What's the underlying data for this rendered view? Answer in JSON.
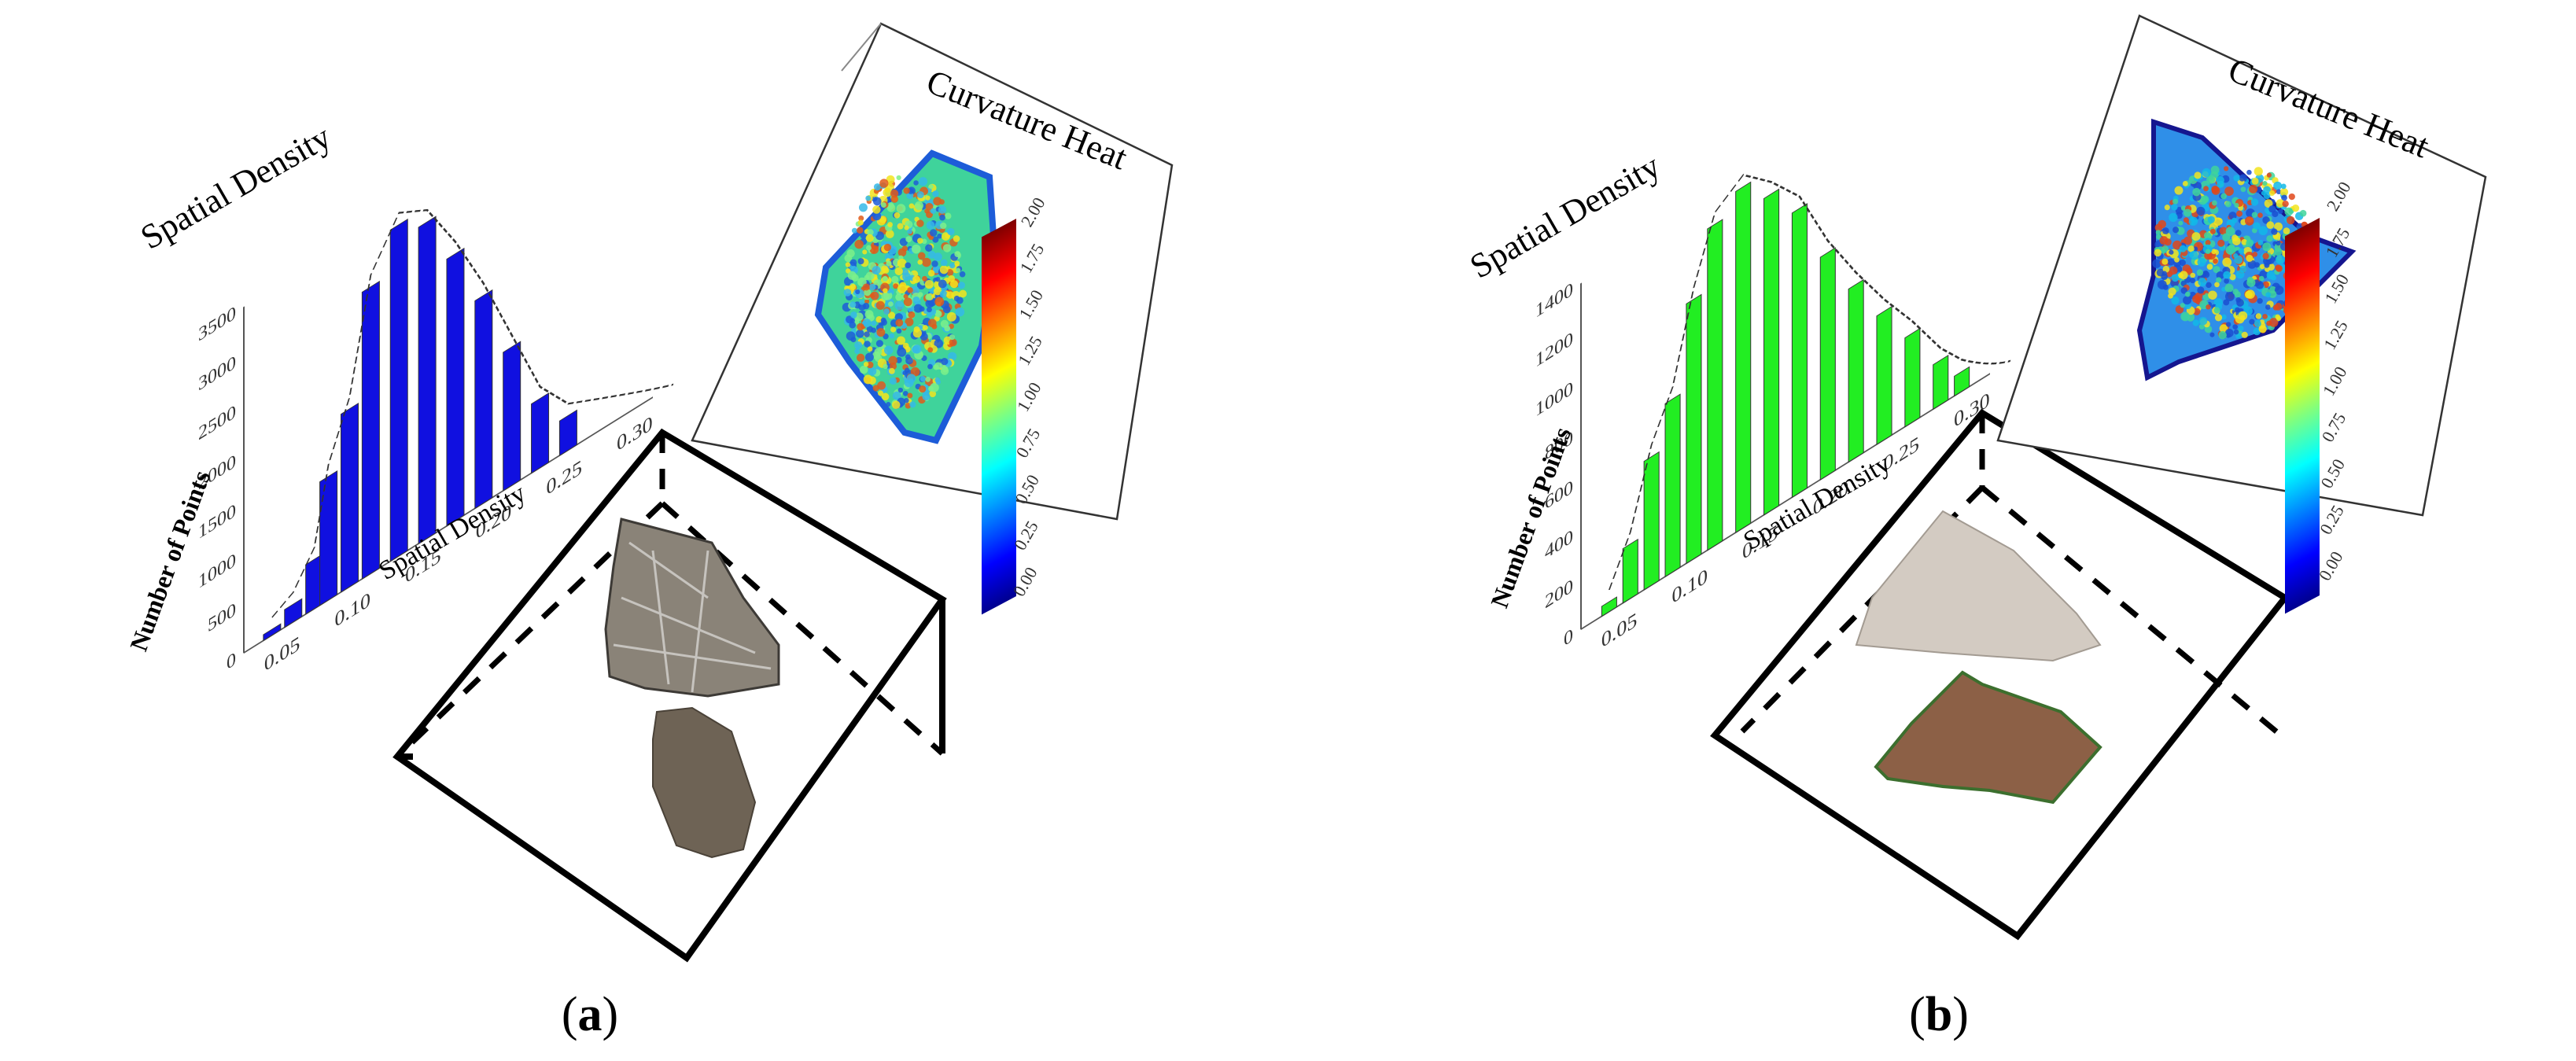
{
  "panels": [
    {
      "id": "a",
      "caption_open": "(",
      "caption_letter": "a",
      "caption_close": ")",
      "bar_color": "#1010e0",
      "moth_color": "#6e6355",
      "mesh_color": "#8a8378",
      "heat_base": "#3fd39b",
      "chart_data": {
        "type": "bar",
        "title": "Spatial Density",
        "xlabel": "Spatial Density",
        "ylabel": "Number of Points",
        "x_ticks": [
          "0.05",
          "0.10",
          "0.15",
          "0.20",
          "0.25",
          "0.30"
        ],
        "y_ticks": [
          "0",
          "500",
          "1000",
          "1500",
          "2000",
          "2500",
          "3000",
          "3500"
        ],
        "ylim": [
          0,
          3500
        ],
        "xlim": [
          0.03,
          0.32
        ],
        "x": [
          0.05,
          0.065,
          0.08,
          0.09,
          0.105,
          0.12,
          0.14,
          0.16,
          0.18,
          0.2,
          0.22,
          0.24,
          0.26
        ],
        "values": [
          60,
          180,
          500,
          1250,
          1800,
          2900,
          3350,
          3200,
          2700,
          2100,
          1400,
          700,
          350
        ]
      },
      "heatmap": {
        "title": "Curvature Heat",
        "colorbar_ticks": [
          "0.00",
          "0.25",
          "0.50",
          "0.75",
          "1.00",
          "1.25",
          "1.50",
          "1.75",
          "2.00"
        ],
        "range": [
          0,
          2
        ]
      }
    },
    {
      "id": "b",
      "caption_open": "(",
      "caption_letter": "b",
      "caption_close": ")",
      "bar_color": "#22ee22",
      "moth_color": "#8c6046",
      "mesh_color": "#d3cbc2",
      "heat_base": "#2f8fe8",
      "chart_data": {
        "type": "bar",
        "title": "Spatial Density",
        "xlabel": "Spatial Density",
        "ylabel": "Number of Points",
        "x_ticks": [
          "0.05",
          "0.10",
          "0.15",
          "0.20",
          "0.25",
          "0.30"
        ],
        "y_ticks": [
          "0",
          "200",
          "400",
          "600",
          "800",
          "1000",
          "1200",
          "1400"
        ],
        "ylim": [
          0,
          1400
        ],
        "xlim": [
          0.03,
          0.32
        ],
        "x": [
          0.05,
          0.065,
          0.08,
          0.095,
          0.11,
          0.125,
          0.145,
          0.165,
          0.185,
          0.205,
          0.225,
          0.245,
          0.265,
          0.285,
          0.3
        ],
        "values": [
          40,
          220,
          520,
          700,
          1050,
          1300,
          1380,
          1280,
          1150,
          900,
          700,
          520,
          360,
          180,
          80
        ]
      },
      "heatmap": {
        "title": "Curvature Heat",
        "colorbar_ticks": [
          "0.00",
          "0.25",
          "0.50",
          "0.75",
          "1.00",
          "1.25",
          "1.50",
          "1.75",
          "2.00"
        ],
        "range": [
          0,
          2
        ]
      }
    }
  ]
}
